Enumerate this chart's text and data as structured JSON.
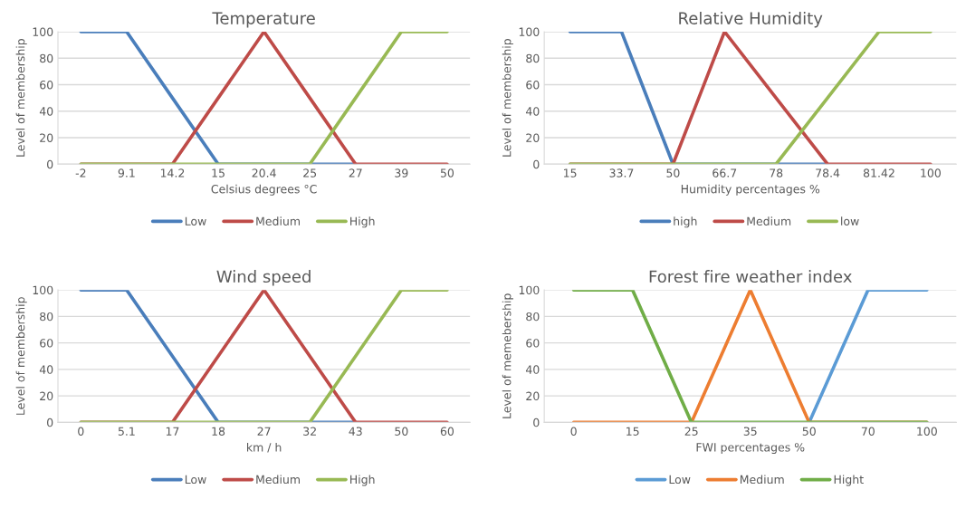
{
  "chart_data": [
    {
      "type": "line",
      "title": "Temperature",
      "xlabel": "Celsius degrees °C",
      "ylabel": "Level of membership",
      "categories": [
        "-2",
        "9.1",
        "14.2",
        "15",
        "20.4",
        "25",
        "27",
        "39",
        "50"
      ],
      "ylim": [
        0,
        100
      ],
      "yticks": [
        0,
        20,
        40,
        60,
        80,
        100
      ],
      "grid": "y",
      "legend": "bottom",
      "series": [
        {
          "name": "Low",
          "color": "#4a7ebb",
          "values": [
            100,
            100,
            50,
            0,
            0,
            0,
            0,
            null,
            null
          ]
        },
        {
          "name": "Medium",
          "color": "#be4b48",
          "values": [
            0,
            0,
            0,
            50,
            100,
            50,
            0,
            0,
            0
          ]
        },
        {
          "name": "High",
          "color": "#98b954",
          "values": [
            0,
            0,
            0,
            0,
            0,
            0,
            50,
            100,
            100
          ]
        }
      ]
    },
    {
      "type": "line",
      "title": "Relative Humidity",
      "xlabel": "Humidity percentages %",
      "ylabel": "Level of membership",
      "categories": [
        "15",
        "33.7",
        "50",
        "66.7",
        "78",
        "78.4",
        "81.42",
        "100"
      ],
      "ylim": [
        0,
        100
      ],
      "yticks": [
        0,
        20,
        40,
        60,
        80,
        100
      ],
      "grid": "y",
      "legend": "bottom",
      "series": [
        {
          "name": "high",
          "color": "#4a7ebb",
          "values": [
            100,
            100,
            0,
            0,
            0,
            0,
            null,
            null
          ]
        },
        {
          "name": "Medium",
          "color": "#be4b48",
          "values": [
            0,
            0,
            0,
            100,
            50,
            0,
            0,
            0
          ]
        },
        {
          "name": "low",
          "color": "#98b954",
          "values": [
            0,
            0,
            0,
            0,
            0,
            50,
            100,
            100
          ]
        }
      ]
    },
    {
      "type": "line",
      "title": "Wind speed",
      "xlabel": "km / h",
      "ylabel": "Level of membership",
      "categories": [
        "0",
        "5.1",
        "17",
        "18",
        "27",
        "32",
        "43",
        "50",
        "60"
      ],
      "ylim": [
        0,
        100
      ],
      "yticks": [
        0,
        20,
        40,
        60,
        80,
        100
      ],
      "grid": "y",
      "legend": "bottom",
      "series": [
        {
          "name": "Low",
          "color": "#4a7ebb",
          "values": [
            100,
            100,
            50,
            0,
            0,
            0,
            0,
            null,
            null
          ]
        },
        {
          "name": "Medium",
          "color": "#be4b48",
          "values": [
            0,
            0,
            0,
            50,
            100,
            50,
            0,
            0,
            0
          ]
        },
        {
          "name": "High",
          "color": "#98b954",
          "values": [
            0,
            0,
            0,
            0,
            0,
            0,
            50,
            100,
            100
          ]
        }
      ]
    },
    {
      "type": "line",
      "title": "Forest fire weather index",
      "xlabel": "FWI percentages %",
      "ylabel": "Level of memebership",
      "categories": [
        "0",
        "15",
        "25",
        "35",
        "50",
        "70",
        "100"
      ],
      "ylim": [
        0,
        100
      ],
      "yticks": [
        0,
        20,
        40,
        60,
        80,
        100
      ],
      "grid": "y",
      "legend": "bottom",
      "series": [
        {
          "name": "Low",
          "color": "#5b9bd5",
          "values": [
            null,
            null,
            null,
            null,
            0,
            100,
            100
          ]
        },
        {
          "name": "Medium",
          "color": "#ed7d31",
          "values": [
            0,
            0,
            0,
            100,
            0,
            0,
            0
          ]
        },
        {
          "name": "Hight",
          "color": "#70ad47",
          "values": [
            100,
            100,
            0,
            0,
            0,
            0,
            0
          ]
        }
      ]
    }
  ]
}
